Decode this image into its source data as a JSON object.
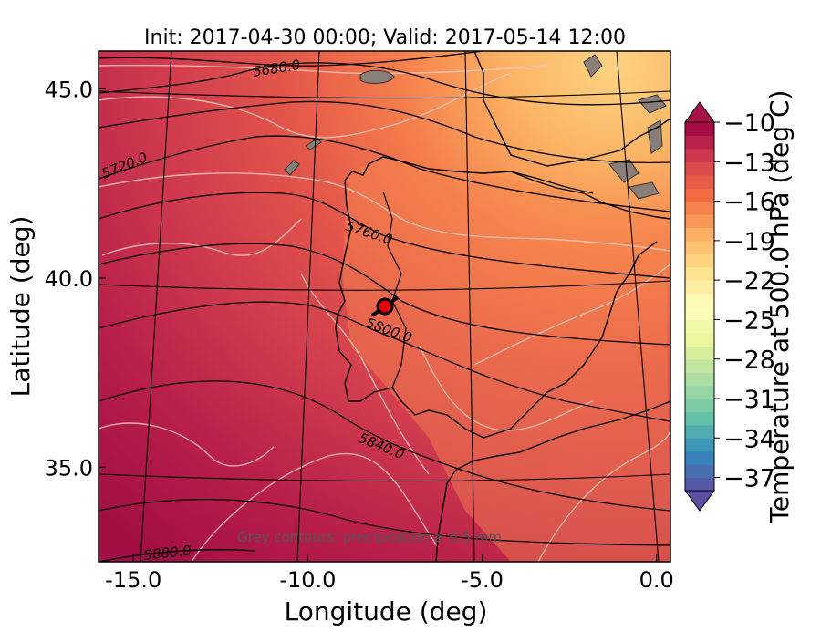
{
  "chart_data": {
    "type": "heatmap",
    "title": "Init: 2017-04-30 00:00; Valid: 2017-05-14 12:00",
    "xlabel": "Longitude (deg)",
    "ylabel": "Latitude (deg)",
    "xlim": [
      -16.0,
      0.4
    ],
    "ylim": [
      32.5,
      46.0
    ],
    "x_ticks": [
      "-15.0",
      "-10.0",
      "-5.0",
      "0.0"
    ],
    "y_ticks": [
      "45.0",
      "40.0",
      "35.0"
    ],
    "colorbar": {
      "label": "Temperature at 500.0 hPa (deg C)",
      "ticks": [
        "−10",
        "−13",
        "−16",
        "−19",
        "−22",
        "−25",
        "−28",
        "−31",
        "−34",
        "−37"
      ],
      "range": [
        -38,
        -10
      ],
      "extend": "both"
    },
    "geopotential_contours": [
      "5680.0",
      "5720.0",
      "5760.0",
      "5800.0",
      "5840.0",
      "5880.0"
    ],
    "annotation": "Grey contours: precipitation ≥ 0.5 mm",
    "temperature_field_range": [
      -20.5,
      -11.0
    ],
    "marker": {
      "lon": -7.6,
      "lat": 39.4,
      "color": "#e00000"
    }
  }
}
